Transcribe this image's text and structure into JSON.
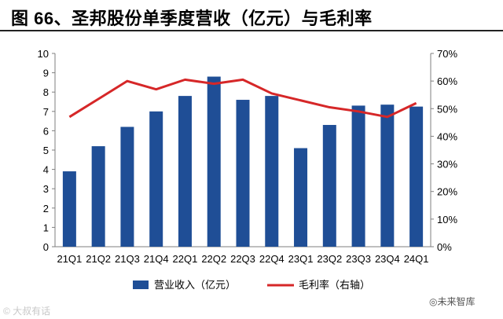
{
  "header": {
    "title": "图 66、圣邦股份单季度营收（亿元）与毛利率"
  },
  "watermarks": {
    "left": "© 大叔有话",
    "right": "◎未来智库"
  },
  "colors": {
    "bar": "#1f4e96",
    "line": "#d62728",
    "axis": "#7f7f7f"
  },
  "chart_data": {
    "type": "bar",
    "categories": [
      "21Q1",
      "21Q2",
      "21Q3",
      "21Q4",
      "22Q1",
      "22Q2",
      "22Q3",
      "22Q4",
      "23Q1",
      "23Q2",
      "23Q3",
      "23Q4",
      "24Q1"
    ],
    "series": [
      {
        "name": "营业收入（亿元）",
        "type": "bar",
        "axis": "left",
        "values": [
          3.9,
          5.2,
          6.2,
          7.0,
          7.8,
          8.8,
          7.6,
          7.8,
          5.1,
          6.3,
          7.3,
          7.35,
          7.25
        ]
      },
      {
        "name": "毛利率（右轴）",
        "type": "line",
        "axis": "right",
        "values": [
          0.47,
          0.535,
          0.6,
          0.57,
          0.605,
          0.59,
          0.605,
          0.555,
          0.53,
          0.505,
          0.49,
          0.47,
          0.52
        ]
      }
    ],
    "left_axis": {
      "min": 0,
      "max": 10,
      "ticks": [
        "0",
        "1",
        "2",
        "3",
        "4",
        "5",
        "6",
        "7",
        "8",
        "9",
        "10"
      ]
    },
    "right_axis": {
      "min": 0,
      "max": 0.7,
      "ticks": [
        "0%",
        "10%",
        "20%",
        "30%",
        "40%",
        "50%",
        "60%",
        "70%"
      ]
    },
    "legend": {
      "position": "bottom",
      "bar_label": "营业收入（亿元）",
      "line_label": "毛利率（右轴）"
    },
    "grid": false
  }
}
